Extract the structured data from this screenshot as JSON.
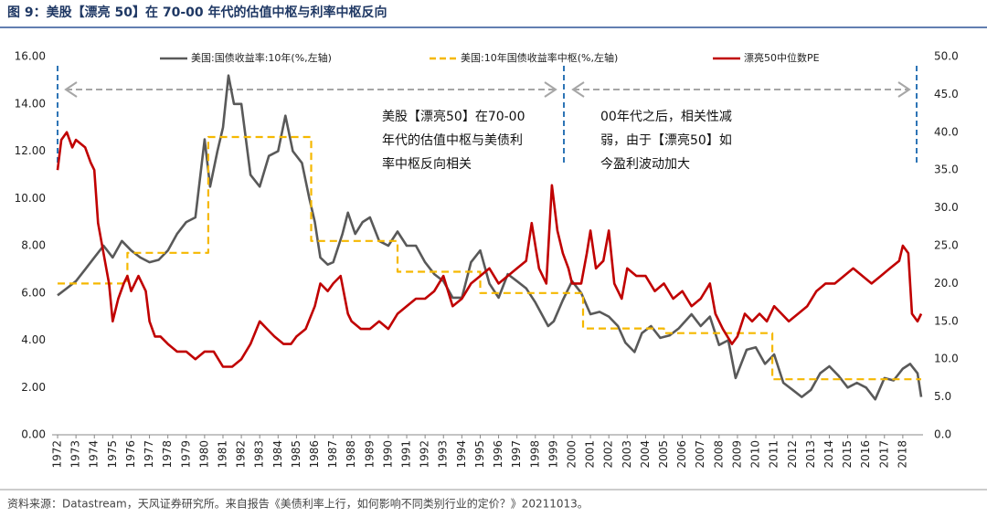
{
  "chart_data": {
    "type": "line",
    "title": "图 9：美股【漂亮 50】在 70-00 年代的估值中枢与利率中枢反向",
    "source": "资料来源：Datastream，天风证券研究所。来自报告《美债利率上行，如何影响不同类别行业的定价？》20211013。",
    "annotations": [
      [
        "美股【漂亮50】在70-00",
        "年代的估值中枢与美债利",
        "率中枢反向相关"
      ],
      [
        "00年代之后，相关性减",
        "弱，由于【漂亮50】如",
        "今盈利波动加大"
      ]
    ],
    "xlim": [
      1971.7,
      2019.1
    ],
    "xticks": [
      1972,
      1973,
      1974,
      1975,
      1976,
      1977,
      1978,
      1979,
      1980,
      1981,
      1982,
      1983,
      1984,
      1985,
      1986,
      1987,
      1988,
      1989,
      1990,
      1991,
      1992,
      1993,
      1994,
      1995,
      1996,
      1997,
      1998,
      1999,
      2000,
      2001,
      2002,
      2003,
      2004,
      2005,
      2006,
      2007,
      2008,
      2009,
      2010,
      2011,
      2012,
      2013,
      2014,
      2015,
      2016,
      2017,
      2018
    ],
    "ylim": [
      0,
      16
    ],
    "yticks": [
      {
        "value": 0,
        "label": "0.00"
      },
      {
        "value": 2,
        "label": "2.00"
      },
      {
        "value": 4,
        "label": "4.00"
      },
      {
        "value": 6,
        "label": "6.00"
      },
      {
        "value": 8,
        "label": "8.00"
      },
      {
        "value": 10,
        "label": "10.00"
      },
      {
        "value": 12,
        "label": "12.00"
      },
      {
        "value": 14,
        "label": "14.00"
      },
      {
        "value": 16,
        "label": "16.00"
      }
    ],
    "y2lim": [
      0,
      50
    ],
    "y2ticks": [
      {
        "value": 0,
        "label": "0.0"
      },
      {
        "value": 5,
        "label": "5.0"
      },
      {
        "value": 10,
        "label": "10.0"
      },
      {
        "value": 15,
        "label": "15.0"
      },
      {
        "value": 20,
        "label": "20.0"
      },
      {
        "value": 25,
        "label": "25.0"
      },
      {
        "value": 30,
        "label": "30.0"
      },
      {
        "value": 35,
        "label": "35.0"
      },
      {
        "value": 40,
        "label": "40.0"
      },
      {
        "value": 45,
        "label": "45.0"
      },
      {
        "value": 50,
        "label": "50.0"
      }
    ],
    "series": [
      {
        "name": "美国:国债收益率:10年(%,左轴)",
        "color": "#595959",
        "dash": false,
        "x": [
          1972.0,
          1972.5,
          1973.0,
          1973.5,
          1974.0,
          1974.5,
          1975.0,
          1975.5,
          1976.0,
          1976.5,
          1977.0,
          1977.5,
          1978.0,
          1978.5,
          1979.0,
          1979.5,
          1980.0,
          1980.3,
          1980.7,
          1981.0,
          1981.3,
          1981.6,
          1982.0,
          1982.5,
          1983.0,
          1983.5,
          1984.0,
          1984.4,
          1984.8,
          1985.3,
          1985.7,
          1986.0,
          1986.3,
          1986.7,
          1987.0,
          1987.5,
          1987.8,
          1988.2,
          1988.6,
          1989.0,
          1989.5,
          1990.0,
          1990.5,
          1991.0,
          1991.5,
          1992.0,
          1992.5,
          1993.0,
          1993.5,
          1994.0,
          1994.5,
          1995.0,
          1995.5,
          1996.0,
          1996.5,
          1997.0,
          1997.5,
          1998.0,
          1998.7,
          1999.0,
          1999.5,
          2000.0,
          2000.5,
          2001.0,
          2001.5,
          2002.0,
          2002.5,
          2002.9,
          2003.4,
          2003.8,
          2004.3,
          2004.8,
          2005.3,
          2005.8,
          2006.5,
          2007.0,
          2007.5,
          2008.0,
          2008.5,
          2008.9,
          2009.5,
          2010.0,
          2010.5,
          2011.0,
          2011.5,
          2012.0,
          2012.5,
          2013.0,
          2013.5,
          2014.0,
          2014.5,
          2015.0,
          2015.5,
          2016.0,
          2016.5,
          2017.0,
          2017.5,
          2018.0,
          2018.4,
          2018.8,
          2019.0
        ],
        "values": [
          5.9,
          6.2,
          6.5,
          7.0,
          7.5,
          8.0,
          7.5,
          8.2,
          7.8,
          7.5,
          7.3,
          7.4,
          7.8,
          8.5,
          9.0,
          9.2,
          12.5,
          10.5,
          12.0,
          13.0,
          15.2,
          14.0,
          14.0,
          11.0,
          10.5,
          11.8,
          12.0,
          13.5,
          12.0,
          11.5,
          10.0,
          9.0,
          7.5,
          7.2,
          7.3,
          8.5,
          9.4,
          8.5,
          9.0,
          9.2,
          8.2,
          8.0,
          8.6,
          8.0,
          8.0,
          7.3,
          6.8,
          6.5,
          5.8,
          5.8,
          7.3,
          7.8,
          6.4,
          5.8,
          6.8,
          6.5,
          6.2,
          5.6,
          4.6,
          4.8,
          5.7,
          6.5,
          6.0,
          5.1,
          5.2,
          5.0,
          4.6,
          3.9,
          3.5,
          4.3,
          4.6,
          4.1,
          4.2,
          4.5,
          5.1,
          4.6,
          5.0,
          3.8,
          4.0,
          2.4,
          3.6,
          3.7,
          3.0,
          3.4,
          2.2,
          1.9,
          1.6,
          1.9,
          2.6,
          2.9,
          2.5,
          2.0,
          2.2,
          2.0,
          1.5,
          2.4,
          2.3,
          2.8,
          3.0,
          2.6,
          1.6
        ]
      },
      {
        "name": "美国:10年国债收益率中枢(%,左轴)",
        "color": "#f5b800",
        "dash": true,
        "x": [
          1972.0,
          1975.8,
          1975.8,
          1980.2,
          1980.2,
          1985.8,
          1985.8,
          1990.5,
          1990.5,
          1995.0,
          1995.0,
          2000.6,
          2000.6,
          2005.0,
          2005.0,
          2010.9,
          2010.9,
          2019.0
        ],
        "values": [
          6.4,
          6.4,
          7.7,
          7.7,
          12.6,
          12.6,
          8.2,
          8.2,
          6.9,
          6.9,
          6.0,
          6.0,
          4.5,
          4.5,
          4.3,
          4.3,
          2.35,
          2.35
        ]
      },
      {
        "name": "漂亮50中位数PE",
        "color": "#c00000",
        "dash": false,
        "axis": "y2",
        "x": [
          1972.0,
          1972.2,
          1972.5,
          1972.8,
          1973.0,
          1973.5,
          1973.8,
          1974.0,
          1974.2,
          1974.5,
          1974.8,
          1975.0,
          1975.3,
          1975.6,
          1975.8,
          1976.0,
          1976.4,
          1976.8,
          1977.0,
          1977.3,
          1977.6,
          1978.0,
          1978.5,
          1979.0,
          1979.5,
          1980.0,
          1980.5,
          1981.0,
          1981.5,
          1982.0,
          1982.5,
          1983.0,
          1983.4,
          1983.8,
          1984.3,
          1984.7,
          1985.0,
          1985.5,
          1986.0,
          1986.3,
          1986.7,
          1987.0,
          1987.4,
          1987.8,
          1988.0,
          1988.5,
          1989.0,
          1989.5,
          1990.0,
          1990.5,
          1991.0,
          1991.5,
          1992.0,
          1992.5,
          1993.0,
          1993.5,
          1994.0,
          1994.5,
          1995.0,
          1995.5,
          1996.0,
          1996.5,
          1997.0,
          1997.5,
          1997.8,
          1998.2,
          1998.6,
          1998.9,
          1999.2,
          1999.5,
          1999.8,
          2000.0,
          2000.5,
          2000.8,
          2001.0,
          2001.3,
          2001.7,
          2002.0,
          2002.3,
          2002.7,
          2003.0,
          2003.5,
          2004.0,
          2004.5,
          2005.0,
          2005.5,
          2006.0,
          2006.5,
          2007.0,
          2007.5,
          2007.8,
          2008.2,
          2008.7,
          2009.0,
          2009.4,
          2009.8,
          2010.2,
          2010.6,
          2011.0,
          2011.4,
          2011.8,
          2012.3,
          2012.8,
          2013.3,
          2013.8,
          2014.3,
          2014.8,
          2015.3,
          2015.8,
          2016.3,
          2016.8,
          2017.3,
          2017.8,
          2018.0,
          2018.3,
          2018.5,
          2018.8,
          2019.0
        ],
        "values": [
          35,
          39,
          40,
          38,
          39,
          38,
          36,
          35,
          28,
          24,
          20,
          15,
          18,
          20,
          21,
          19,
          21,
          19,
          15,
          13,
          13,
          12,
          11,
          11,
          10,
          11,
          11,
          9,
          9,
          10,
          12,
          15,
          14,
          13,
          12,
          12,
          13,
          14,
          17,
          20,
          19,
          20,
          21,
          16,
          15,
          14,
          14,
          15,
          14,
          16,
          17,
          18,
          18,
          19,
          21,
          17,
          18,
          20,
          21,
          22,
          20,
          21,
          22,
          23,
          28,
          22,
          20,
          33,
          27,
          24,
          22,
          20,
          20,
          24,
          27,
          22,
          23,
          27,
          20,
          18,
          22,
          21,
          21,
          19,
          20,
          18,
          19,
          17,
          18,
          20,
          16,
          14,
          12,
          13,
          16,
          15,
          16,
          15,
          17,
          16,
          15,
          16,
          17,
          19,
          20,
          20,
          21,
          22,
          21,
          20,
          21,
          22,
          23,
          25,
          24,
          16,
          15,
          16
        ]
      }
    ]
  }
}
